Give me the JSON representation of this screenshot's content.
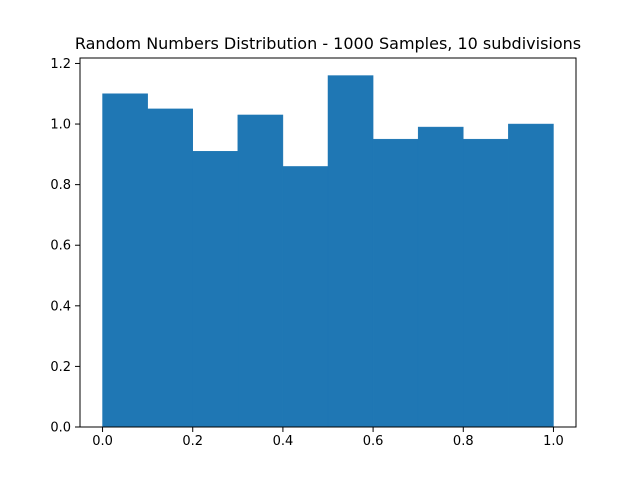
{
  "chart_data": {
    "type": "bar",
    "title": "Random Numbers Distribution - 1000 Samples, 10 subdivisions",
    "xlabel": "",
    "ylabel": "",
    "xlim": [
      -0.05,
      1.05
    ],
    "ylim": [
      0,
      1.218
    ],
    "bins": [
      {
        "x0": 0.0,
        "x1": 0.1,
        "value": 1.1
      },
      {
        "x0": 0.1,
        "x1": 0.2,
        "value": 1.05
      },
      {
        "x0": 0.2,
        "x1": 0.3,
        "value": 0.91
      },
      {
        "x0": 0.3,
        "x1": 0.4,
        "value": 1.03
      },
      {
        "x0": 0.4,
        "x1": 0.5,
        "value": 0.86
      },
      {
        "x0": 0.5,
        "x1": 0.6,
        "value": 1.16
      },
      {
        "x0": 0.6,
        "x1": 0.7,
        "value": 0.95
      },
      {
        "x0": 0.7,
        "x1": 0.8,
        "value": 0.99
      },
      {
        "x0": 0.8,
        "x1": 0.9,
        "value": 0.95
      },
      {
        "x0": 0.9,
        "x1": 1.0,
        "value": 1.0
      }
    ],
    "xticks": [
      {
        "value": 0.0,
        "label": "0.0"
      },
      {
        "value": 0.2,
        "label": "0.2"
      },
      {
        "value": 0.4,
        "label": "0.4"
      },
      {
        "value": 0.6,
        "label": "0.6"
      },
      {
        "value": 0.8,
        "label": "0.8"
      },
      {
        "value": 1.0,
        "label": "1.0"
      }
    ],
    "yticks": [
      {
        "value": 0.0,
        "label": "0.0"
      },
      {
        "value": 0.2,
        "label": "0.2"
      },
      {
        "value": 0.4,
        "label": "0.4"
      },
      {
        "value": 0.6,
        "label": "0.6"
      },
      {
        "value": 0.8,
        "label": "0.8"
      },
      {
        "value": 1.0,
        "label": "1.0"
      },
      {
        "value": 1.2,
        "label": "1.2"
      }
    ],
    "grid": false,
    "bar_color": "#1f77b4"
  }
}
